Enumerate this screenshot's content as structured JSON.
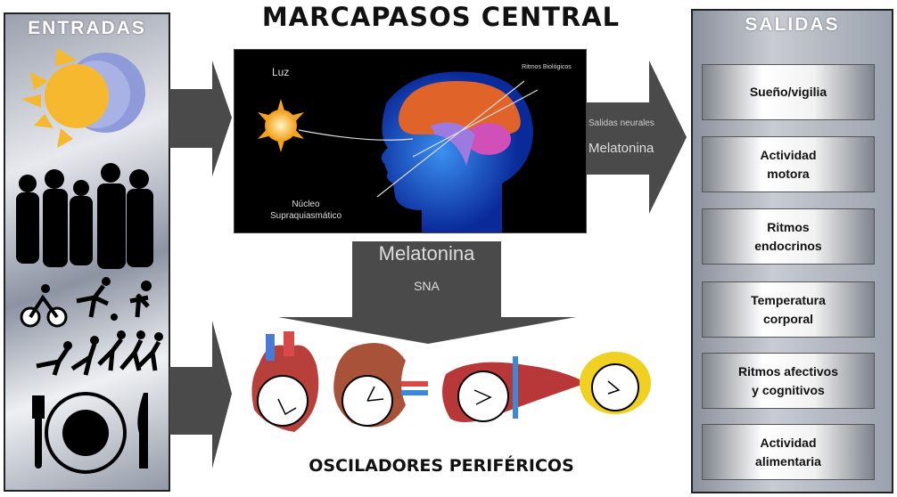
{
  "title": "MARCAPASOS CENTRAL",
  "inputs": {
    "title": "ENTRADAS",
    "icons": [
      "sun-moon-icon",
      "people-silhouette-icon",
      "sports-icon",
      "runners-icon",
      "plate-cutlery-icon"
    ]
  },
  "central": {
    "light_label": "Luz",
    "rhythms_label": "Ritmos Biológicos",
    "scn_label_1": "Núcleo",
    "scn_label_2": "Supraquiasmático"
  },
  "right_arrow": {
    "line1": "Salidas neurales",
    "line2": "Melatonina"
  },
  "down_arrow": {
    "line1": "Melatonina",
    "line2": "SNA"
  },
  "peripheral": {
    "title": "OSCILADORES PERIFÉRICOS",
    "organs": [
      "heart",
      "kidney",
      "liver",
      "adipose"
    ]
  },
  "outputs": {
    "title": "SALIDAS",
    "items": [
      {
        "l1": "Sueño/vigilia",
        "l2": ""
      },
      {
        "l1": "Actividad",
        "l2": "motora"
      },
      {
        "l1": "Ritmos",
        "l2": "endocrinos"
      },
      {
        "l1": "Temperatura",
        "l2": "corporal"
      },
      {
        "l1": "Ritmos afectivos",
        "l2": "y cognitivos"
      },
      {
        "l1": "Actividad",
        "l2": "alimentaria"
      }
    ]
  },
  "colors": {
    "arrow": "#4a4a4a",
    "sun": "#f5b82e",
    "brain_bg": "#000000"
  }
}
